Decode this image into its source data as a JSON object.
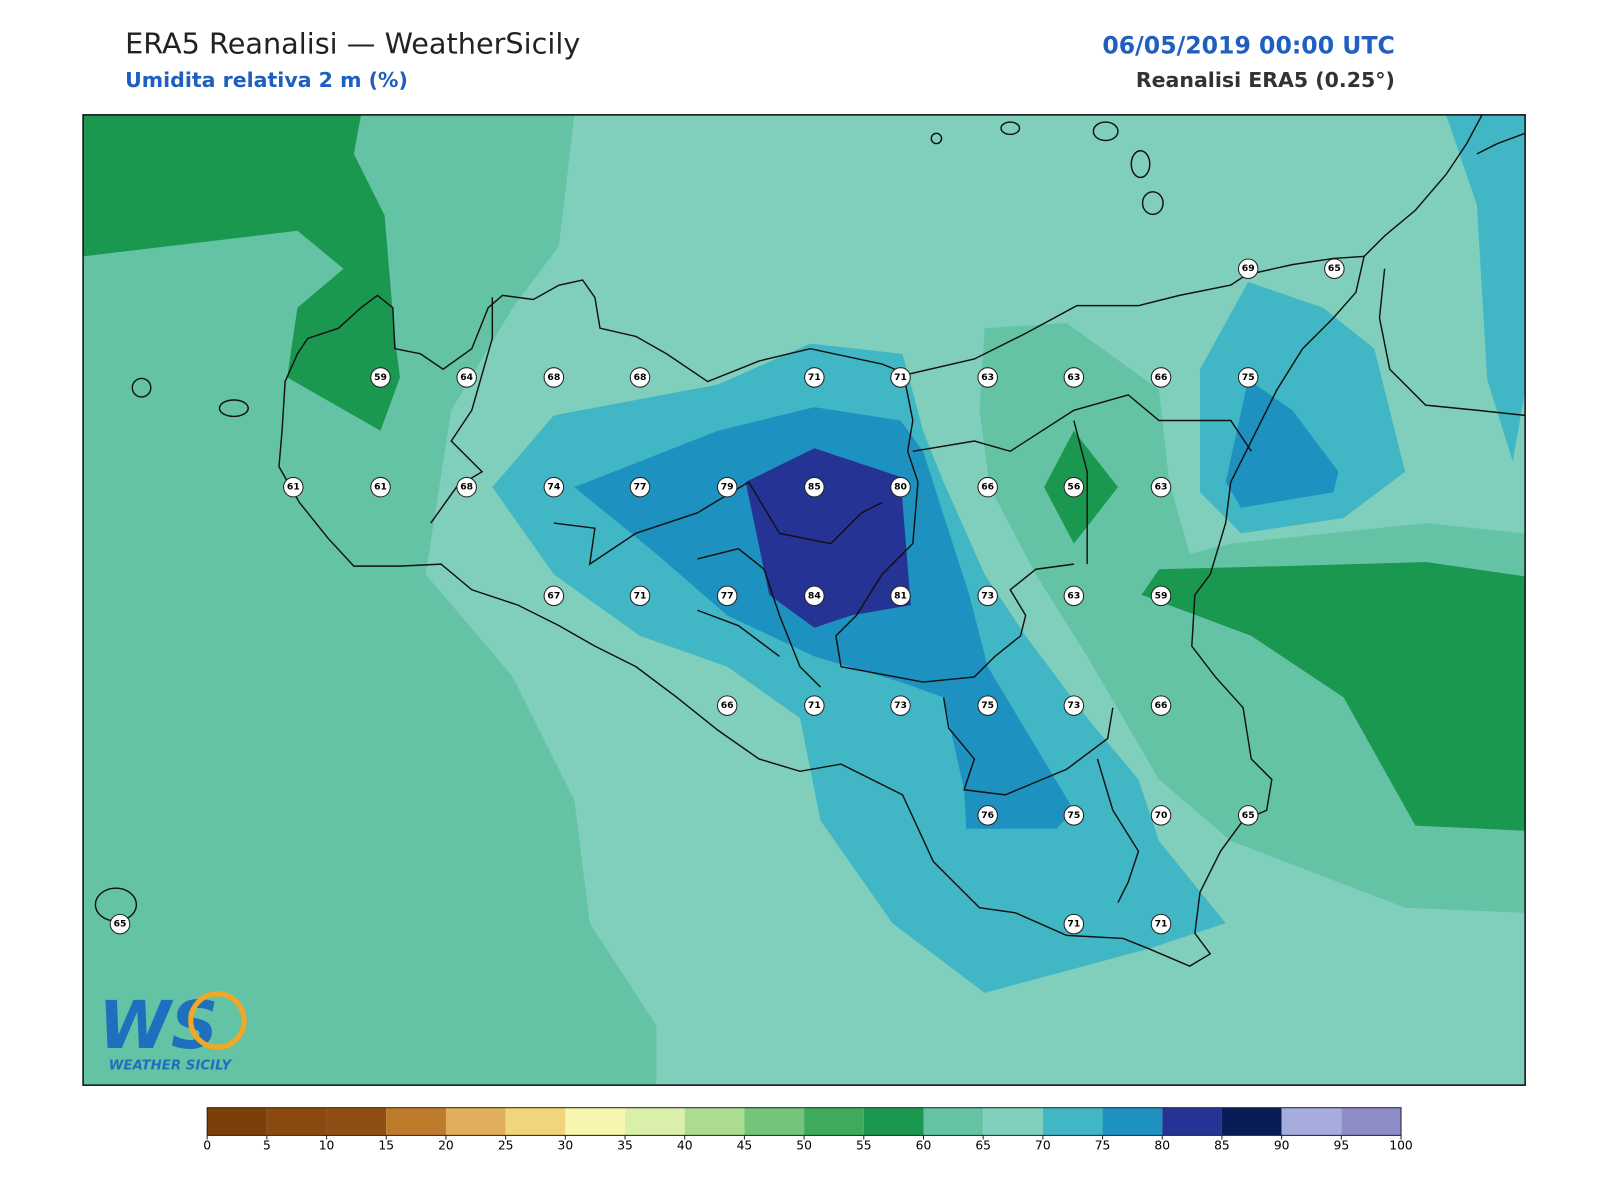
{
  "header": {
    "title": "ERA5 Reanalisi — WeatherSicily",
    "subtitle": "Umidita relativa 2 m (%)",
    "date": "06/05/2019 00:00 UTC",
    "source": "Reanalisi ERA5 (0.25°)"
  },
  "stations": [
    69,
    65,
    59,
    64,
    68,
    68,
    71,
    71,
    63,
    63,
    66,
    75,
    61,
    61,
    68,
    74,
    77,
    79,
    85,
    80,
    66,
    56,
    63,
    67,
    71,
    77,
    84,
    81,
    73,
    63,
    59,
    66,
    71,
    73,
    75,
    73,
    66,
    76,
    75,
    70,
    65,
    65,
    71,
    71
  ],
  "colorbar": {
    "ticks": [
      0,
      5,
      10,
      15,
      20,
      25,
      30,
      35,
      40,
      45,
      50,
      55,
      60,
      65,
      70,
      75,
      80,
      85,
      90,
      95,
      100
    ],
    "colors": [
      "#7b4009",
      "#8b4a10",
      "#8f4f14",
      "#bf7b2c",
      "#e0ae5c",
      "#f1d57c",
      "#f7f5ae",
      "#daefa9",
      "#abdc8f",
      "#74c47a",
      "#3daa5c",
      "#1a9850",
      "#64c3a5",
      "#80cfbd",
      "#41b6c4",
      "#1d91c0",
      "#253494",
      "#081d58",
      "#a6acdb",
      "#8e8dc8"
    ]
  },
  "logo": {
    "mark": "WS",
    "name": "WEATHER SICILY"
  }
}
